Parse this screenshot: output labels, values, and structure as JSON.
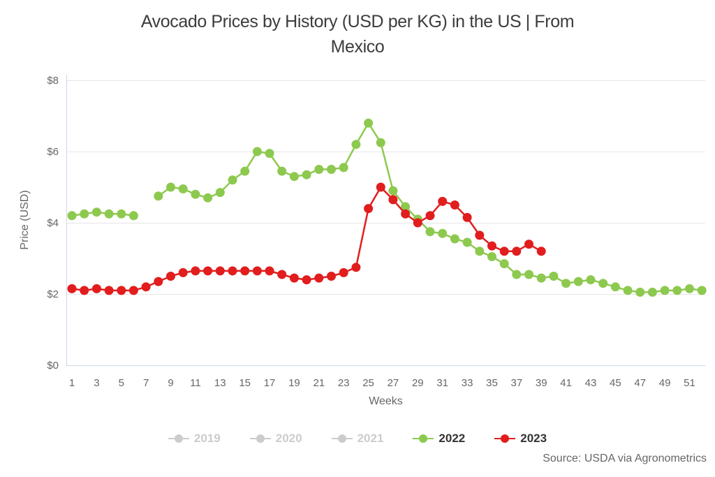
{
  "chart_data": {
    "type": "line",
    "title": "Avocado Prices by History (USD per KG) in the US | From Mexico",
    "title_lines": [
      "Avocado Prices by History (USD per KG) in the US | From",
      "Mexico"
    ],
    "xlabel": "Weeks",
    "ylabel": "Price (USD)",
    "ylim": [
      0,
      8
    ],
    "yticks": [
      0,
      2,
      4,
      6,
      8
    ],
    "ytick_labels": [
      "$0",
      "$2",
      "$4",
      "$6",
      "$8"
    ],
    "xticks": [
      1,
      3,
      5,
      7,
      9,
      11,
      13,
      15,
      17,
      19,
      21,
      23,
      25,
      27,
      29,
      31,
      33,
      35,
      37,
      39,
      41,
      43,
      45,
      47,
      49,
      51
    ],
    "x_weeks_max": 52,
    "grid": "horizontal",
    "legend_position": "bottom-center",
    "colors": {
      "series_2022": "#8dc94f",
      "series_2023": "#e11d1d",
      "disabled_legend": "#cccccc",
      "axis_line": "#ccd6eb",
      "gridline": "#e6e6e6",
      "tick_text": "#666666",
      "title_text": "#3c3c3c"
    },
    "series": [
      {
        "name": "2019",
        "enabled": false,
        "color": "#cccccc",
        "values": []
      },
      {
        "name": "2020",
        "enabled": false,
        "color": "#cccccc",
        "values": []
      },
      {
        "name": "2021",
        "enabled": false,
        "color": "#cccccc",
        "values": []
      },
      {
        "name": "2022",
        "enabled": true,
        "color": "#8dc94f",
        "values": [
          4.2,
          4.25,
          4.3,
          4.25,
          4.25,
          4.2,
          null,
          4.75,
          5.0,
          4.95,
          4.8,
          4.7,
          4.85,
          5.2,
          5.45,
          6.0,
          5.95,
          5.45,
          5.3,
          5.35,
          5.5,
          5.5,
          5.55,
          6.2,
          6.8,
          6.25,
          4.9,
          4.45,
          4.1,
          3.75,
          3.7,
          3.55,
          3.45,
          3.2,
          3.05,
          2.85,
          2.55,
          2.55,
          2.45,
          2.5,
          2.3,
          2.35,
          2.4,
          2.3,
          2.2,
          2.1,
          2.05,
          2.05,
          2.1,
          2.1,
          2.15,
          2.1
        ]
      },
      {
        "name": "2023",
        "enabled": true,
        "color": "#e11d1d",
        "values": [
          2.15,
          2.1,
          2.15,
          2.1,
          2.1,
          2.1,
          2.2,
          2.35,
          2.5,
          2.6,
          2.65,
          2.65,
          2.65,
          2.65,
          2.65,
          2.65,
          2.65,
          2.55,
          2.45,
          2.4,
          2.45,
          2.5,
          2.6,
          2.75,
          4.4,
          5.0,
          4.65,
          4.25,
          4.0,
          4.2,
          4.6,
          4.5,
          4.15,
          3.65,
          3.35,
          3.2,
          3.2,
          3.4,
          3.2
        ]
      }
    ],
    "source": "Source: USDA via Agronometrics"
  }
}
